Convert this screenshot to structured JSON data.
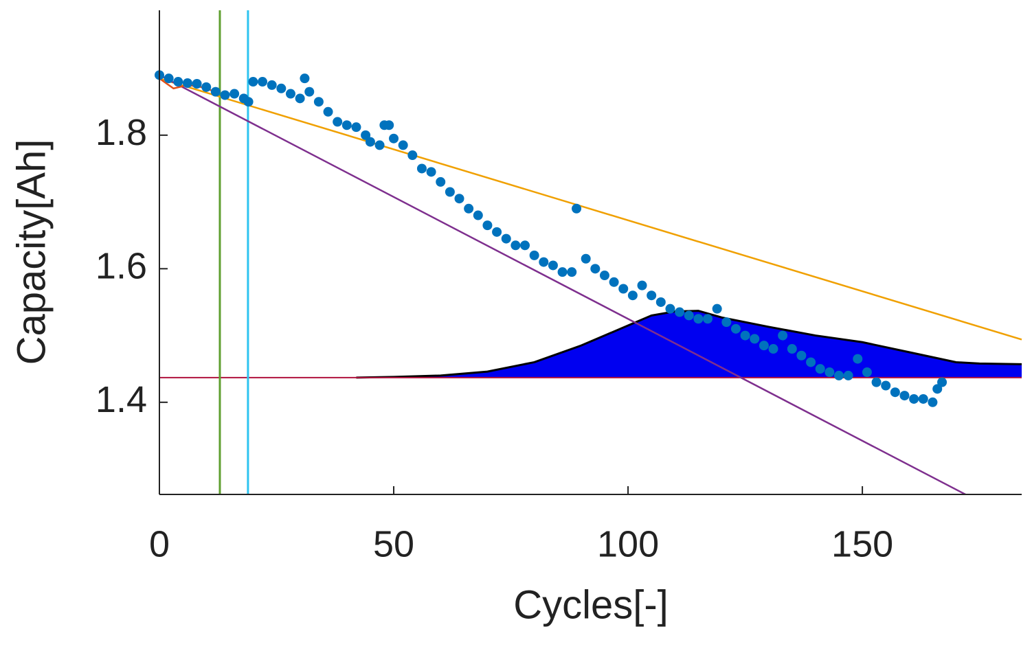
{
  "chart_data": {
    "type": "scatter",
    "xlabel": "Cycles[-]",
    "ylabel": "Capacity[Ah]",
    "xlim": [
      0,
      184
    ],
    "ylim": [
      1.262,
      1.987
    ],
    "xticks": [
      0,
      50,
      100,
      150
    ],
    "yticks": [
      1.4,
      1.6,
      1.8
    ],
    "grid": false,
    "series": [
      {
        "color": "#0072bd",
        "x": [
          0,
          2,
          4,
          6,
          8,
          10,
          12,
          14,
          16,
          18,
          19,
          20,
          22,
          24,
          26,
          28,
          30,
          31,
          32,
          34,
          36,
          38,
          40,
          42,
          44,
          45,
          47,
          48,
          49,
          50,
          52,
          54,
          56,
          58,
          60,
          62,
          64,
          66,
          68,
          70,
          72,
          74,
          76,
          78,
          80,
          82,
          84,
          86,
          88,
          89,
          91,
          93,
          95,
          97,
          99,
          101,
          103,
          105,
          107,
          109,
          111,
          113,
          115,
          117,
          119,
          121,
          123,
          125,
          127,
          129,
          131,
          133,
          135,
          137,
          139,
          141,
          143,
          145,
          147,
          149,
          151,
          153,
          155,
          157,
          159,
          161,
          163,
          165,
          166,
          167
        ],
        "values": [
          1.89,
          1.885,
          1.88,
          1.878,
          1.877,
          1.872,
          1.865,
          1.86,
          1.862,
          1.855,
          1.85,
          1.88,
          1.88,
          1.875,
          1.87,
          1.862,
          1.855,
          1.885,
          1.865,
          1.85,
          1.835,
          1.82,
          1.815,
          1.812,
          1.8,
          1.79,
          1.785,
          1.815,
          1.815,
          1.795,
          1.785,
          1.77,
          1.75,
          1.745,
          1.73,
          1.715,
          1.705,
          1.69,
          1.68,
          1.665,
          1.655,
          1.645,
          1.635,
          1.635,
          1.62,
          1.61,
          1.605,
          1.595,
          1.595,
          1.69,
          1.615,
          1.6,
          1.59,
          1.58,
          1.57,
          1.56,
          1.575,
          1.56,
          1.55,
          1.54,
          1.535,
          1.53,
          1.525,
          1.525,
          1.54,
          1.52,
          1.51,
          1.5,
          1.495,
          1.485,
          1.48,
          1.5,
          1.48,
          1.47,
          1.46,
          1.45,
          1.445,
          1.44,
          1.44,
          1.465,
          1.445,
          1.43,
          1.425,
          1.415,
          1.41,
          1.405,
          1.405,
          1.4,
          1.42,
          1.43
        ]
      }
    ],
    "lines": [
      {
        "color": "#f0a000",
        "x": [
          0,
          184
        ],
        "values": [
          1.885,
          1.494
        ]
      },
      {
        "color": "#7e2f8e",
        "x": [
          0,
          172
        ],
        "values": [
          1.89,
          1.262
        ]
      },
      {
        "color": "#e0501a",
        "x": [
          0,
          3,
          6,
          9,
          12
        ],
        "values": [
          1.885,
          1.87,
          1.875,
          1.872,
          1.865
        ]
      }
    ],
    "vlines": [
      {
        "color": "#5fa030",
        "value": 12.9
      },
      {
        "color": "#2ec4f0",
        "value": 18.9
      }
    ],
    "hlines": [
      {
        "color": "#b0103c",
        "value": 1.437
      }
    ],
    "area": {
      "color": "#0000f0",
      "edge": "#000000",
      "x": [
        42,
        50,
        60,
        70,
        80,
        90,
        100,
        105,
        110,
        115,
        120,
        130,
        140,
        150,
        160,
        170,
        175,
        184
      ],
      "values": [
        1.437,
        1.438,
        1.44,
        1.446,
        1.46,
        1.485,
        1.515,
        1.53,
        1.536,
        1.537,
        1.527,
        1.513,
        1.5,
        1.49,
        1.475,
        1.46,
        1.458,
        1.457
      ]
    }
  }
}
